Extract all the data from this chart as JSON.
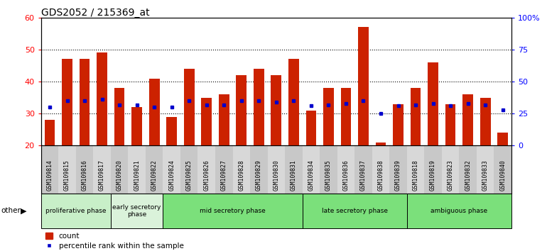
{
  "title": "GDS2052 / 215369_at",
  "samples": [
    "GSM109814",
    "GSM109815",
    "GSM109816",
    "GSM109817",
    "GSM109820",
    "GSM109821",
    "GSM109822",
    "GSM109824",
    "GSM109825",
    "GSM109826",
    "GSM109827",
    "GSM109828",
    "GSM109829",
    "GSM109830",
    "GSM109831",
    "GSM109834",
    "GSM109835",
    "GSM109836",
    "GSM109837",
    "GSM109838",
    "GSM109839",
    "GSM109818",
    "GSM109819",
    "GSM109823",
    "GSM109832",
    "GSM109833",
    "GSM109840"
  ],
  "counts": [
    28,
    47,
    47,
    49,
    38,
    32,
    41,
    29,
    44,
    35,
    36,
    42,
    44,
    42,
    47,
    31,
    38,
    38,
    57,
    21,
    33,
    38,
    46,
    33,
    36,
    35,
    24
  ],
  "percentile_ranks": [
    30,
    35,
    35,
    36,
    32,
    32,
    30,
    30,
    35,
    32,
    32,
    35,
    35,
    34,
    35,
    31,
    32,
    33,
    35,
    25,
    31,
    32,
    33,
    31,
    33,
    32,
    28
  ],
  "ylim_left": [
    20,
    60
  ],
  "ylim_right": [
    0,
    100
  ],
  "yticks_left": [
    20,
    30,
    40,
    50,
    60
  ],
  "yticks_right": [
    0,
    25,
    50,
    75,
    100
  ],
  "bar_color": "#cc2200",
  "marker_color": "#0000cc",
  "phases": [
    {
      "name": "proliferative phase",
      "start": 0,
      "end": 3,
      "color": "#c8efc8"
    },
    {
      "name": "early secretory\nphase",
      "start": 4,
      "end": 6,
      "color": "#daf2da"
    },
    {
      "name": "mid secretory phase",
      "start": 7,
      "end": 14,
      "color": "#7be07b"
    },
    {
      "name": "late secretory phase",
      "start": 15,
      "end": 20,
      "color": "#7be07b"
    },
    {
      "name": "ambiguous phase",
      "start": 21,
      "end": 26,
      "color": "#7be07b"
    }
  ],
  "tick_bg_odd": "#c8c8c8",
  "tick_bg_even": "#d8d8d8"
}
